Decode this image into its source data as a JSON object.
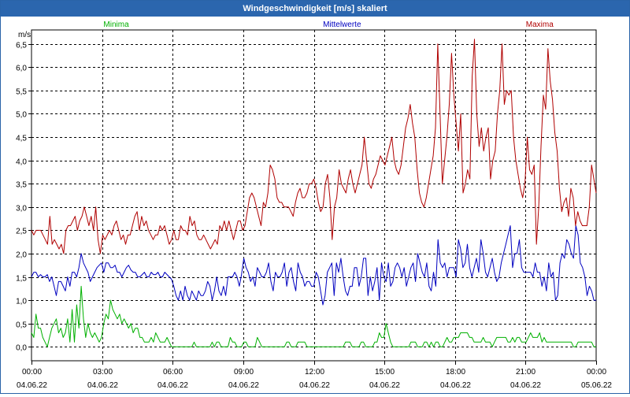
{
  "window": {
    "title": "Windgeschwindigkeit [m/s] skaliert"
  },
  "chart_data": {
    "type": "line",
    "title": "Windgeschwindigkeit [m/s] skaliert",
    "ylabel": "m/s",
    "ylim": [
      -0.3,
      6.8
    ],
    "yticks": [
      0.0,
      0.5,
      1.0,
      1.5,
      2.0,
      2.5,
      3.0,
      3.5,
      4.0,
      4.5,
      5.0,
      5.5,
      6.0,
      6.5
    ],
    "ytick_labels": [
      "0,0",
      "0,5",
      "1,0",
      "1,5",
      "2,0",
      "2,5",
      "3,0",
      "3,5",
      "4,0",
      "4,5",
      "5,0",
      "5,5",
      "6,0",
      "6,5"
    ],
    "xlim": [
      0,
      24
    ],
    "xticks": [
      {
        "hour": 0,
        "time": "00:00",
        "date": "04.06.22"
      },
      {
        "hour": 3,
        "time": "03:00",
        "date": "04.06.22"
      },
      {
        "hour": 6,
        "time": "06:00",
        "date": "04.06.22"
      },
      {
        "hour": 9,
        "time": "09:00",
        "date": "04.06.22"
      },
      {
        "hour": 12,
        "time": "12:00",
        "date": "04.06.22"
      },
      {
        "hour": 15,
        "time": "15:00",
        "date": "04.06.22"
      },
      {
        "hour": 18,
        "time": "18:00",
        "date": "04.06.22"
      },
      {
        "hour": 21,
        "time": "21:00",
        "date": "04.06.22"
      },
      {
        "hour": 24,
        "time": "00:00",
        "date": "05.06.22"
      }
    ],
    "grid": true,
    "legend_position": "top",
    "series": [
      {
        "name": "Minima",
        "color": "#00b000",
        "values": [
          0.3,
          0.2,
          0.7,
          0.4,
          0.4,
          0.2,
          0.1,
          0.0,
          0.2,
          0.4,
          0.5,
          0.6,
          0.3,
          0.4,
          0.2,
          0.3,
          0.6,
          0.1,
          0.8,
          0.1,
          0.9,
          0.4,
          1.3,
          0.6,
          0.2,
          0.5,
          0.3,
          0.2,
          0.3,
          0.2,
          0.1,
          0.2,
          0.5,
          0.7,
          0.6,
          1.0,
          0.8,
          0.7,
          0.6,
          0.7,
          0.5,
          0.6,
          0.5,
          0.4,
          0.5,
          0.3,
          0.4,
          0.4,
          0.2,
          0.2,
          0.1,
          0.1,
          0.1,
          0.2,
          0.1,
          0.3,
          0.2,
          0.1,
          0.1,
          0.1,
          0.2,
          0.1,
          0.0,
          0.0,
          0.0,
          0.0,
          0.0,
          0.0,
          0.0,
          0.0,
          0.0,
          0.0,
          0.1,
          0.0,
          0.0,
          0.0,
          0.0,
          0.0,
          0.0,
          0.0,
          0.1,
          0.0,
          0.1,
          0.1,
          0.0,
          0.0,
          0.0,
          0.0,
          0.2,
          0.1,
          0.1,
          0.0,
          0.0,
          0.0,
          0.1,
          0.1,
          0.0,
          0.0,
          0.0,
          0.0,
          0.2,
          0.1,
          0.0,
          0.0,
          0.0,
          0.0,
          0.0,
          0.0,
          0.0,
          0.0,
          0.0,
          0.0,
          0.0,
          0.1,
          0.1,
          0.0,
          0.0,
          0.0,
          0.1,
          0.1,
          0.1,
          0.1,
          0.0,
          0.0,
          0.0,
          0.0,
          0.0,
          0.0,
          0.0,
          0.0,
          0.0,
          0.0,
          0.0,
          0.0,
          0.0,
          0.0,
          0.0,
          0.0,
          0.0,
          0.1,
          0.1,
          0.1,
          0.0,
          0.0,
          0.0,
          0.0,
          0.1,
          0.1,
          0.0,
          0.0,
          0.0,
          0.0,
          0.1,
          0.1,
          0.3,
          0.2,
          0.2,
          0.5,
          0.3,
          0.1,
          0.0,
          0.0,
          0.0,
          0.0,
          0.0,
          0.0,
          0.0,
          0.0,
          0.1,
          0.1,
          0.1,
          0.0,
          0.0,
          0.0,
          0.1,
          0.1,
          0.0,
          0.1,
          0.0,
          0.1,
          0.1,
          0.0,
          0.0,
          0.1,
          0.2,
          0.1,
          0.1,
          0.2,
          0.2,
          0.2,
          0.3,
          0.3,
          0.3,
          0.3,
          0.2,
          0.2,
          0.1,
          0.1,
          0.1,
          0.1,
          0.2,
          0.1,
          0.1,
          0.1,
          0.0,
          0.1,
          0.2,
          0.2,
          0.2,
          0.2,
          0.2,
          0.1,
          0.1,
          0.2,
          0.1,
          0.2,
          0.2,
          0.1,
          0.1,
          0.1,
          0.2,
          0.3,
          0.2,
          0.2,
          0.2,
          0.3,
          0.1,
          0.2,
          0.1,
          0.1,
          0.1,
          0.1,
          0.1,
          0.1,
          0.1,
          0.1,
          0.1,
          0.1,
          0.1,
          0.1,
          0.0,
          0.0,
          0.1,
          0.1,
          0.1,
          0.1,
          0.1,
          0.1,
          0.1,
          0.0,
          0.0
        ]
      },
      {
        "name": "Mittelwerte",
        "color": "#0000c0",
        "values": [
          1.5,
          1.6,
          1.6,
          1.5,
          1.55,
          1.5,
          1.5,
          1.55,
          1.4,
          1.5,
          1.3,
          1.1,
          1.4,
          1.4,
          1.3,
          1.2,
          1.5,
          1.3,
          1.6,
          1.6,
          1.5,
          1.7,
          2.0,
          1.8,
          1.7,
          1.6,
          1.4,
          1.5,
          1.6,
          1.7,
          1.75,
          1.8,
          1.6,
          1.8,
          1.8,
          1.7,
          1.7,
          1.75,
          1.6,
          1.6,
          1.5,
          1.6,
          1.7,
          1.75,
          1.65,
          1.6,
          1.6,
          1.5,
          1.5,
          1.55,
          1.6,
          1.5,
          1.5,
          1.6,
          1.55,
          1.55,
          1.6,
          1.5,
          1.5,
          1.6,
          1.55,
          1.5,
          1.45,
          1.3,
          1.1,
          1.0,
          1.2,
          1.0,
          1.3,
          1.1,
          1.0,
          1.2,
          1.1,
          1.0,
          1.2,
          1.1,
          1.1,
          1.2,
          1.4,
          1.3,
          1.0,
          1.2,
          1.5,
          1.2,
          1.1,
          1.3,
          1.1,
          1.5,
          1.5,
          1.5,
          1.6,
          1.5,
          1.3,
          1.55,
          1.9,
          1.7,
          1.6,
          1.4,
          1.5,
          1.3,
          1.7,
          1.6,
          1.5,
          1.5,
          1.6,
          1.8,
          1.4,
          1.2,
          1.6,
          1.5,
          1.5,
          1.6,
          1.8,
          1.3,
          1.6,
          1.7,
          1.4,
          1.2,
          1.8,
          1.6,
          1.5,
          1.3,
          1.4,
          1.4,
          1.3,
          1.3,
          1.6,
          1.5,
          1.2,
          0.9,
          1.1,
          1.6,
          1.7,
          1.8,
          1.1,
          1.8,
          1.6,
          1.9,
          1.5,
          1.2,
          1.1,
          1.3,
          1.3,
          1.7,
          1.7,
          1.3,
          1.5,
          1.9,
          1.9,
          1.1,
          1.5,
          1.2,
          1.4,
          1.7,
          1.0,
          1.8,
          1.5,
          1.4,
          1.8,
          1.3,
          1.4,
          1.7,
          1.8,
          1.7,
          1.5,
          1.7,
          1.3,
          1.5,
          1.7,
          1.8,
          1.4,
          2.0,
          1.8,
          1.6,
          1.5,
          1.8,
          1.3,
          1.2,
          1.6,
          1.3,
          2.3,
          1.8,
          1.7,
          1.8,
          1.5,
          1.7,
          1.7,
          1.7,
          1.5,
          2.3,
          2.1,
          1.7,
          1.8,
          2.2,
          1.7,
          1.5,
          1.7,
          1.9,
          1.6,
          2.3,
          2.0,
          1.6,
          1.5,
          1.7,
          1.9,
          1.6,
          1.4,
          1.5,
          1.8,
          2.0,
          2.2,
          2.4,
          2.6,
          1.7,
          2.0,
          2.0,
          2.3,
          1.7,
          1.6,
          1.6,
          1.6,
          1.6,
          1.5,
          1.8,
          1.6,
          1.6,
          1.3,
          1.5,
          1.2,
          1.8,
          1.5,
          1.6,
          1.0,
          1.1,
          1.8,
          2.0,
          1.9,
          2.3,
          2.2,
          2.0,
          1.9,
          2.6,
          2.4,
          1.8,
          1.7,
          1.5,
          1.1,
          1.3,
          1.2,
          1.0,
          1.0
        ]
      },
      {
        "name": "Maxima",
        "color": "#b00000",
        "values": [
          2.5,
          2.4,
          2.5,
          2.5,
          2.5,
          2.4,
          2.3,
          2.2,
          2.8,
          2.2,
          2.3,
          2.2,
          2.1,
          2.2,
          2.0,
          2.5,
          2.6,
          2.6,
          2.7,
          2.8,
          2.5,
          2.7,
          2.8,
          3.0,
          2.8,
          2.6,
          2.8,
          2.5,
          3.0,
          2.3,
          2.0,
          2.4,
          2.3,
          2.4,
          2.5,
          2.4,
          2.6,
          2.7,
          2.5,
          2.3,
          2.4,
          2.2,
          2.4,
          2.4,
          2.6,
          2.8,
          2.9,
          2.5,
          2.8,
          2.6,
          2.7,
          2.5,
          2.4,
          2.3,
          2.4,
          2.4,
          2.6,
          2.5,
          2.6,
          2.4,
          2.2,
          2.3,
          2.5,
          2.3,
          2.3,
          2.6,
          2.5,
          2.5,
          2.4,
          2.8,
          2.6,
          2.7,
          2.4,
          2.3,
          2.3,
          2.4,
          2.3,
          2.2,
          2.1,
          2.2,
          2.3,
          2.2,
          2.6,
          2.5,
          2.7,
          2.5,
          2.7,
          2.5,
          2.3,
          2.5,
          2.7,
          2.7,
          2.5,
          2.6,
          2.9,
          3.2,
          3.3,
          3.2,
          3.0,
          2.8,
          2.6,
          3.1,
          3.0,
          3.3,
          3.9,
          3.8,
          3.6,
          3.2,
          3.1,
          3.1,
          3.0,
          3.0,
          3.0,
          2.9,
          2.8,
          3.1,
          3.3,
          3.4,
          3.2,
          3.2,
          3.3,
          3.5,
          3.5,
          3.6,
          3.4,
          3.1,
          2.9,
          3.0,
          3.5,
          3.7,
          3.2,
          2.3,
          3.0,
          3.2,
          3.8,
          3.5,
          3.4,
          3.3,
          3.6,
          3.8,
          3.5,
          3.3,
          3.5,
          3.7,
          3.9,
          4.5,
          4.0,
          3.5,
          3.4,
          3.6,
          3.7,
          3.9,
          4.1,
          4.0,
          3.9,
          4.1,
          4.3,
          4.5,
          4.0,
          3.8,
          3.7,
          3.9,
          4.3,
          4.7,
          4.9,
          5.2,
          4.8,
          4.5,
          3.8,
          3.3,
          3.1,
          3.0,
          3.2,
          3.5,
          3.8,
          4.1,
          4.7,
          6.5,
          5.0,
          3.5,
          4.0,
          4.5,
          5.2,
          6.3,
          5.4,
          4.8,
          4.2,
          5.0,
          3.3,
          3.5,
          3.8,
          3.6,
          5.8,
          6.6,
          5.0,
          4.3,
          4.7,
          4.2,
          4.5,
          4.7,
          3.6,
          4.0,
          4.2,
          5.0,
          5.5,
          6.5,
          5.2,
          5.5,
          5.4,
          5.5,
          4.5,
          4.0,
          3.7,
          3.4,
          3.2,
          3.5,
          4.5,
          3.8,
          3.7,
          3.9,
          2.2,
          3.0,
          4.3,
          5.4,
          5.1,
          6.4,
          5.7,
          5.3,
          4.6,
          4.2,
          3.4,
          2.9,
          3.1,
          3.2,
          2.8,
          3.4,
          3.2,
          2.6,
          2.9,
          2.7,
          2.6,
          2.6,
          2.6,
          3.0,
          3.9,
          3.6,
          3.3
        ]
      }
    ]
  }
}
